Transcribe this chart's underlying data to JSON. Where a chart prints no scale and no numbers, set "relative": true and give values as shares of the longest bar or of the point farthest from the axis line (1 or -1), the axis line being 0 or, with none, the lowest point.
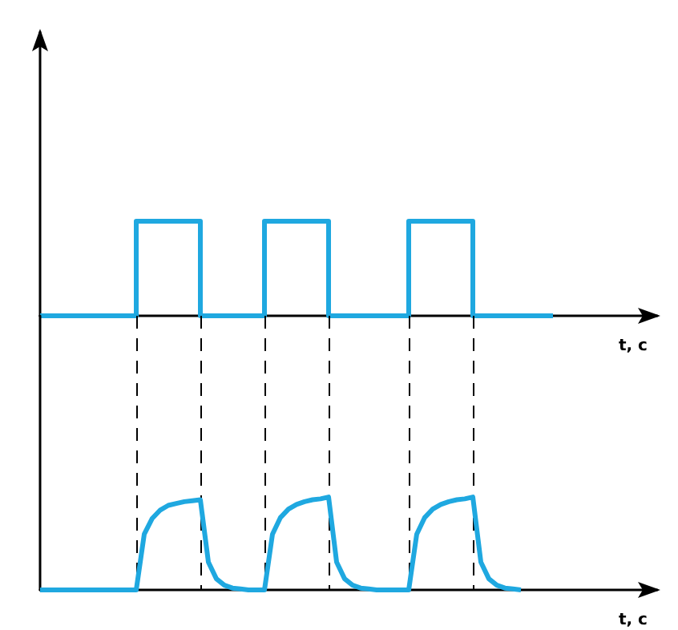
{
  "chart_data": [
    {
      "type": "step",
      "xlabel": "t, c",
      "relative": true,
      "marker": "none",
      "categories": [
        null,
        null,
        null,
        null,
        null,
        null,
        null,
        null,
        null,
        null,
        null,
        null,
        null,
        null,
        null,
        null,
        null,
        null,
        null,
        null,
        null,
        null,
        null,
        null,
        null,
        null,
        null,
        null,
        null,
        null,
        null,
        null,
        null,
        null,
        null,
        null,
        null,
        null,
        null,
        null,
        null,
        null,
        null,
        null,
        null,
        null,
        null,
        null,
        null,
        null,
        null,
        null,
        null,
        null,
        null,
        null,
        null,
        null,
        null,
        null,
        null,
        null,
        null,
        null,
        null,
        null,
        null,
        null,
        null,
        null,
        null,
        null,
        null,
        null,
        null,
        null,
        null,
        null
      ],
      "series": [
        {
          "color": "#1fa8e0",
          "values": [
            0,
            0,
            0,
            0,
            0,
            0,
            0,
            0,
            0,
            0,
            0,
            0,
            1,
            1,
            1,
            1,
            1,
            1,
            1,
            1,
            0,
            0,
            0,
            0,
            0,
            0,
            0,
            0,
            1,
            1,
            1,
            1,
            1,
            1,
            1,
            1,
            0,
            0,
            0,
            0,
            0,
            0,
            0,
            0,
            0,
            0,
            1,
            1,
            1,
            1,
            1,
            1,
            1,
            1,
            0,
            0,
            0,
            0,
            0,
            0,
            0,
            0,
            0,
            0,
            null,
            null,
            null,
            null,
            null,
            null,
            null,
            null,
            null,
            null,
            null,
            null,
            null,
            null
          ]
        }
      ]
    },
    {
      "type": "line",
      "xlabel": "t, c",
      "relative": true,
      "marker": "none",
      "categories": [
        null,
        null,
        null,
        null,
        null,
        null,
        null,
        null,
        null,
        null,
        null,
        null,
        null,
        null,
        null,
        null,
        null,
        null,
        null,
        null,
        null,
        null,
        null,
        null,
        null,
        null,
        null,
        null,
        null,
        null,
        null,
        null,
        null,
        null,
        null,
        null,
        null,
        null,
        null,
        null,
        null,
        null,
        null,
        null,
        null,
        null,
        null,
        null,
        null,
        null,
        null,
        null,
        null,
        null,
        null,
        null,
        null,
        null,
        null,
        null,
        null,
        null,
        null,
        null,
        null,
        null,
        null,
        null,
        null,
        null,
        null,
        null,
        null,
        null,
        null,
        null,
        null,
        null
      ],
      "grid": "x",
      "series": [
        {
          "color": "#1fa8e0",
          "values": [
            0,
            0,
            0,
            0,
            0,
            0,
            0,
            0,
            0,
            0,
            0,
            0,
            0,
            0.6,
            0.77,
            0.86,
            0.91,
            0.93,
            0.95,
            0.96,
            0.97,
            0.3,
            0.12,
            0.05,
            0.02,
            0.01,
            0,
            0,
            0,
            0.6,
            0.78,
            0.87,
            0.92,
            0.95,
            0.97,
            0.98,
            1,
            0.3,
            0.12,
            0.05,
            0.02,
            0.01,
            0,
            0,
            0,
            0,
            0,
            0.6,
            0.78,
            0.87,
            0.92,
            0.95,
            0.97,
            0.98,
            1,
            0.3,
            0.12,
            0.05,
            0.02,
            0.01,
            0,
            null,
            null,
            null,
            null,
            null,
            null,
            null,
            null,
            null,
            null,
            null,
            null,
            null,
            null,
            null,
            null,
            null
          ]
        }
      ]
    }
  ]
}
